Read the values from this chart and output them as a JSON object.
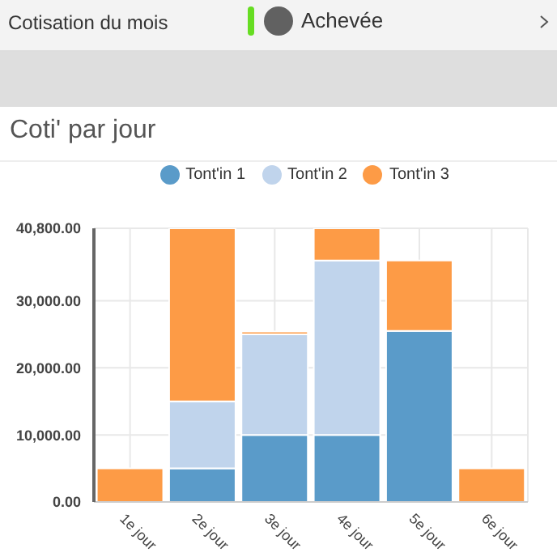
{
  "chart_data": {
    "type": "bar",
    "title": "Coti' par jour",
    "annotations": [
      "Cotisation du mois",
      "Achevée"
    ],
    "categories": [
      "1e jour",
      "2e jour",
      "3e jour",
      "4e jour",
      "5e jour",
      "6e jour"
    ],
    "series": [
      {
        "name": "Tont'in 1",
        "color": "#5a9bc9",
        "values": [
          0,
          5000,
          10000,
          10000,
          25500,
          0
        ]
      },
      {
        "name": "Tont'in 2",
        "color": "#c0d4ec",
        "values": [
          0,
          10000,
          15000,
          26000,
          0,
          0
        ]
      },
      {
        "name": "Tont'in 3",
        "color": "#fd9b46",
        "values": [
          5000,
          25800,
          400,
          4800,
          10500,
          5000
        ]
      }
    ],
    "stacked": true,
    "ylim": [
      0,
      40800
    ],
    "yticks": [
      {
        "value": 0,
        "label": "0.00"
      },
      {
        "value": 10000,
        "label": "10,000.00"
      },
      {
        "value": 20000,
        "label": "20,000.00"
      },
      {
        "value": 30000,
        "label": "30,000.00"
      },
      {
        "value": 40800,
        "label": "40,800.00"
      }
    ],
    "grid": true,
    "legend": "top"
  }
}
